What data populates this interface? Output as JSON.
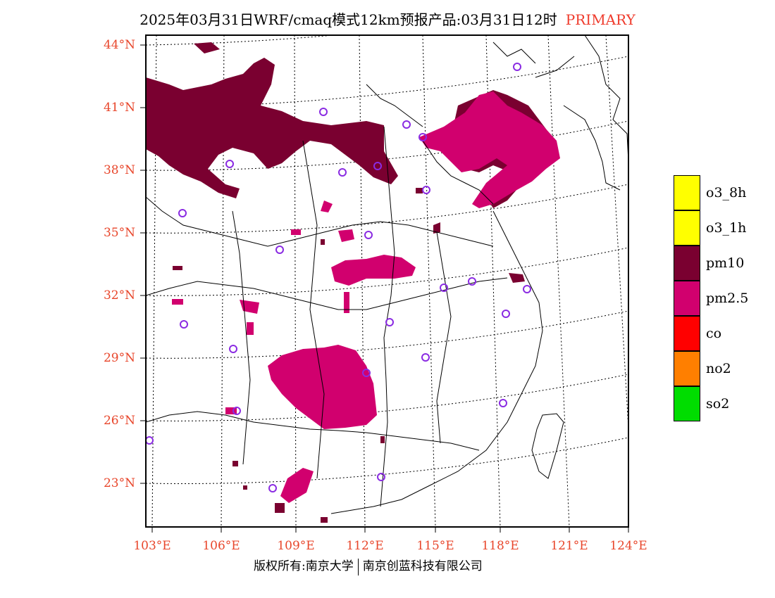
{
  "title": {
    "main": "2025年03月31日WRF/cmaq模式12km预报产品:03月31日12时",
    "tag": "PRIMARY"
  },
  "lat_labels": [
    "44°N",
    "41°N",
    "38°N",
    "35°N",
    "32°N",
    "29°N",
    "26°N",
    "23°N"
  ],
  "lon_labels": [
    "103°E",
    "106°E",
    "109°E",
    "112°E",
    "115°E",
    "118°E",
    "121°E",
    "124°E"
  ],
  "legend": [
    {
      "label": "o3_8h",
      "color": "#ffff00"
    },
    {
      "label": "o3_1h",
      "color": "#ffff00"
    },
    {
      "label": "pm10",
      "color": "#7a0030"
    },
    {
      "label": "pm2.5",
      "color": "#d1006e"
    },
    {
      "label": "co",
      "color": "#ff0000"
    },
    {
      "label": "no2",
      "color": "#ff7f00"
    },
    {
      "label": "so2",
      "color": "#00dd00"
    }
  ],
  "footer": {
    "left": "版权所有:南京大学",
    "right": "南京创蓝科技有限公司"
  },
  "colors": {
    "pm10": "#7a0030",
    "pm25": "#d1006e",
    "station_marker": "#8a2be2",
    "axis_label": "#e8462b"
  }
}
